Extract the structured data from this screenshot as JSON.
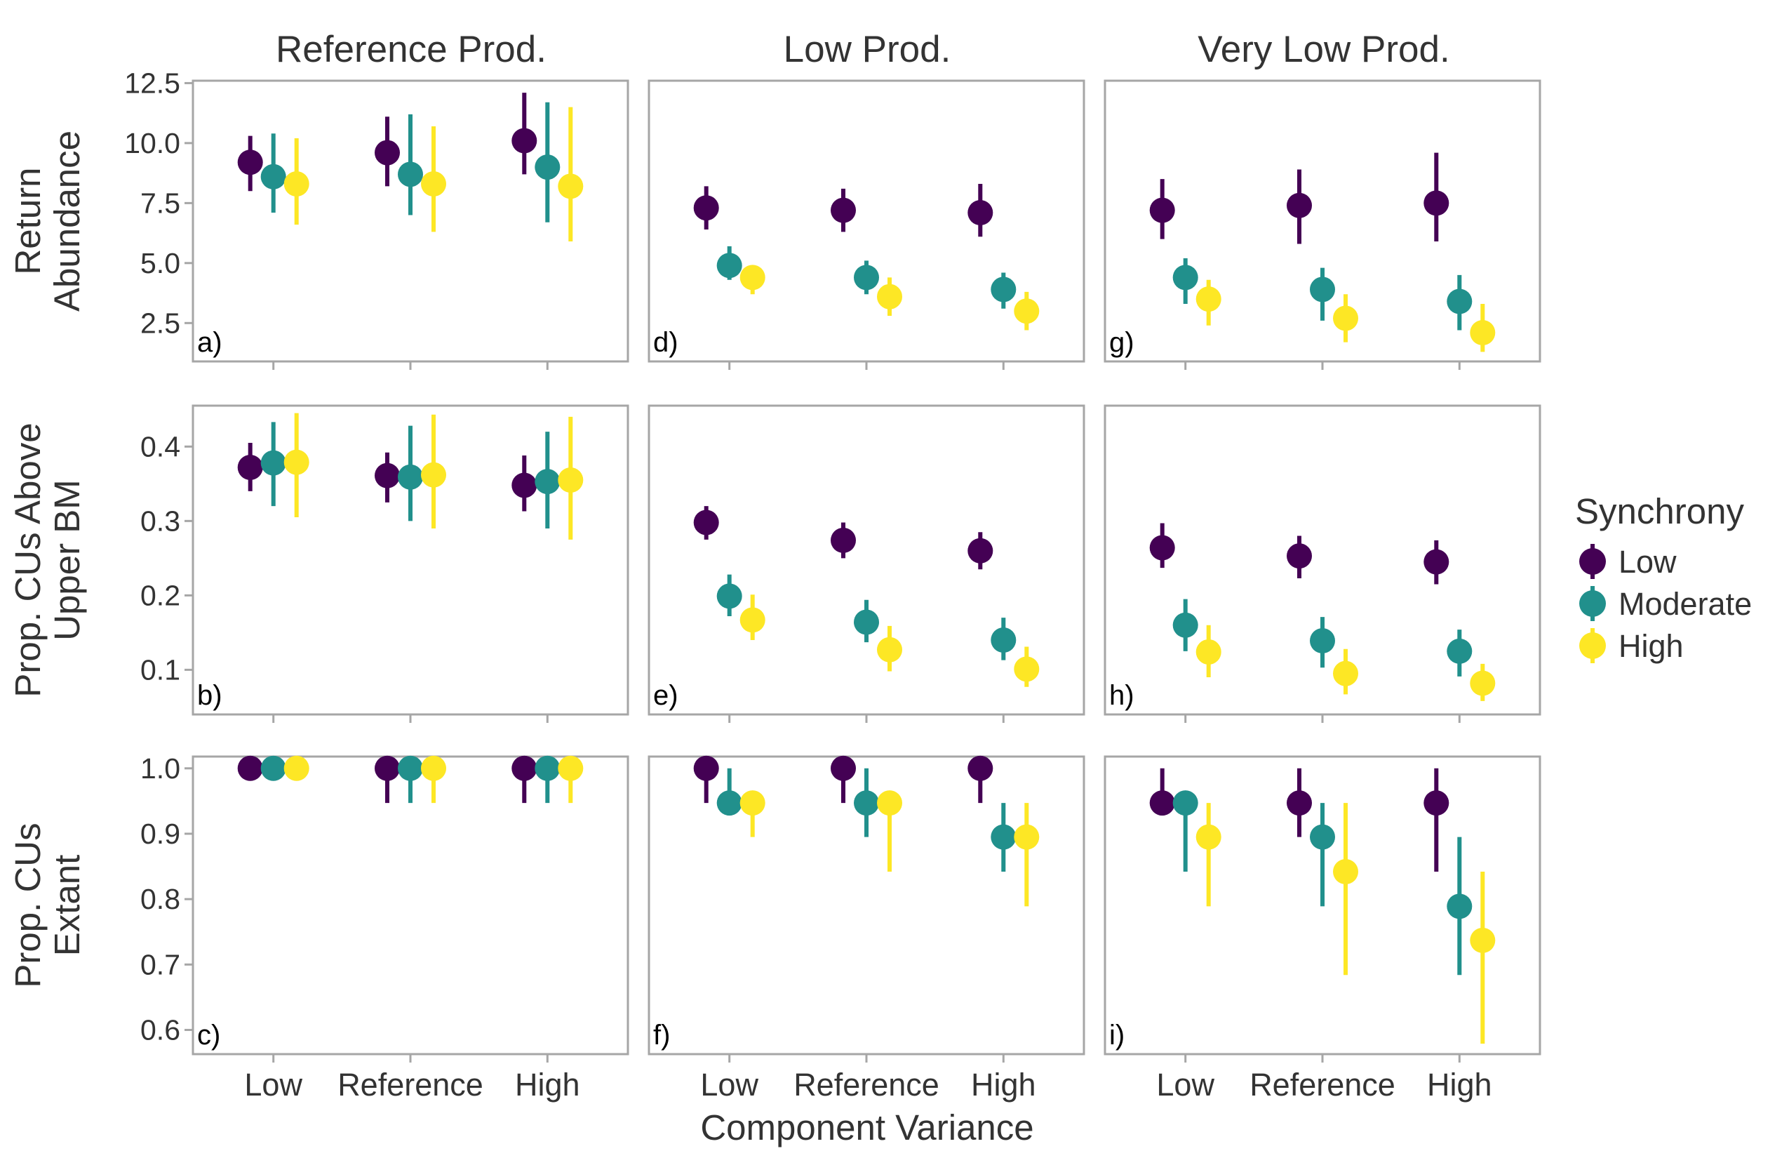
{
  "x_axis": {
    "title": "Component Variance",
    "categories": [
      "Low",
      "Reference",
      "High"
    ]
  },
  "columns": [
    "Reference Prod.",
    "Low Prod.",
    "Very Low Prod."
  ],
  "rows": [
    {
      "label_lines": [
        "Return",
        "Abundance"
      ],
      "ylim": [
        0.9,
        12.6
      ],
      "ticks": [
        2.5,
        5.0,
        7.5,
        10.0,
        12.5
      ],
      "tick_labels": [
        "2.5",
        "5.0",
        "7.5",
        "10.0",
        "12.5"
      ]
    },
    {
      "label_lines": [
        "Prop. CUs Above",
        "Upper BM"
      ],
      "ylim": [
        0.04,
        0.455
      ],
      "ticks": [
        0.1,
        0.2,
        0.3,
        0.4
      ],
      "tick_labels": [
        "0.1",
        "0.2",
        "0.3",
        "0.4"
      ]
    },
    {
      "label_lines": [
        "Prop. CUs",
        "Extant"
      ],
      "ylim": [
        0.563,
        1.018
      ],
      "ticks": [
        0.6,
        0.7,
        0.8,
        0.9,
        1.0
      ],
      "tick_labels": [
        "0.6",
        "0.7",
        "0.8",
        "0.9",
        "1.0"
      ]
    }
  ],
  "legend": {
    "title": "Synchrony",
    "position": "right",
    "entries": [
      {
        "name": "Low",
        "color": "#440154"
      },
      {
        "name": "Moderate",
        "color": "#21908C"
      },
      {
        "name": "High",
        "color": "#FDE725"
      }
    ]
  },
  "chart_data": {
    "type": "scatter",
    "facets": [
      {
        "label": "a)",
        "row": 0,
        "col": 0,
        "series": [
          {
            "name": "Low",
            "x": [
              "Low",
              "Reference",
              "High"
            ],
            "y": [
              9.2,
              9.6,
              10.1
            ],
            "lower": [
              8.0,
              8.2,
              8.7
            ],
            "upper": [
              10.3,
              11.1,
              12.1
            ]
          },
          {
            "name": "Moderate",
            "x": [
              "Low",
              "Reference",
              "High"
            ],
            "y": [
              8.6,
              8.7,
              9.0
            ],
            "lower": [
              7.1,
              7.0,
              6.7
            ],
            "upper": [
              10.4,
              11.2,
              11.7
            ]
          },
          {
            "name": "High",
            "x": [
              "Low",
              "Reference",
              "High"
            ],
            "y": [
              8.3,
              8.3,
              8.2
            ],
            "lower": [
              6.6,
              6.3,
              5.9
            ],
            "upper": [
              10.2,
              10.7,
              11.5
            ]
          }
        ]
      },
      {
        "label": "b)",
        "row": 1,
        "col": 0,
        "series": [
          {
            "name": "Low",
            "x": [
              "Low",
              "Reference",
              "High"
            ],
            "y": [
              0.372,
              0.361,
              0.348
            ],
            "lower": [
              0.34,
              0.325,
              0.313
            ],
            "upper": [
              0.405,
              0.392,
              0.388
            ]
          },
          {
            "name": "Moderate",
            "x": [
              "Low",
              "Reference",
              "High"
            ],
            "y": [
              0.378,
              0.359,
              0.353
            ],
            "lower": [
              0.32,
              0.3,
              0.29
            ],
            "upper": [
              0.433,
              0.428,
              0.42
            ]
          },
          {
            "name": "High",
            "x": [
              "Low",
              "Reference",
              "High"
            ],
            "y": [
              0.379,
              0.362,
              0.355
            ],
            "lower": [
              0.305,
              0.29,
              0.275
            ],
            "upper": [
              0.445,
              0.443,
              0.44
            ]
          }
        ]
      },
      {
        "label": "c)",
        "row": 2,
        "col": 0,
        "series": [
          {
            "name": "Low",
            "x": [
              "Low",
              "Reference",
              "High"
            ],
            "y": [
              1.0,
              1.0,
              1.0
            ],
            "lower": [
              1.0,
              0.947,
              0.947
            ],
            "upper": [
              1.0,
              1.0,
              1.0
            ]
          },
          {
            "name": "Moderate",
            "x": [
              "Low",
              "Reference",
              "High"
            ],
            "y": [
              1.0,
              1.0,
              1.0
            ],
            "lower": [
              1.0,
              0.947,
              0.947
            ],
            "upper": [
              1.0,
              1.0,
              1.0
            ]
          },
          {
            "name": "High",
            "x": [
              "Low",
              "Reference",
              "High"
            ],
            "y": [
              1.0,
              1.0,
              1.0
            ],
            "lower": [
              1.0,
              0.947,
              0.947
            ],
            "upper": [
              1.0,
              1.0,
              1.0
            ]
          }
        ]
      },
      {
        "label": "d)",
        "row": 0,
        "col": 1,
        "series": [
          {
            "name": "Low",
            "x": [
              "Low",
              "Reference",
              "High"
            ],
            "y": [
              7.3,
              7.2,
              7.1
            ],
            "lower": [
              6.4,
              6.3,
              6.1
            ],
            "upper": [
              8.2,
              8.1,
              8.3
            ]
          },
          {
            "name": "Moderate",
            "x": [
              "Low",
              "Reference",
              "High"
            ],
            "y": [
              4.9,
              4.4,
              3.9
            ],
            "lower": [
              4.3,
              3.7,
              3.1
            ],
            "upper": [
              5.7,
              5.1,
              4.6
            ]
          },
          {
            "name": "High",
            "x": [
              "Low",
              "Reference",
              "High"
            ],
            "y": [
              4.4,
              3.6,
              3.0
            ],
            "lower": [
              3.7,
              2.8,
              2.2
            ],
            "upper": [
              4.9,
              4.4,
              3.8
            ]
          }
        ]
      },
      {
        "label": "e)",
        "row": 1,
        "col": 1,
        "series": [
          {
            "name": "Low",
            "x": [
              "Low",
              "Reference",
              "High"
            ],
            "y": [
              0.298,
              0.274,
              0.26
            ],
            "lower": [
              0.275,
              0.25,
              0.235
            ],
            "upper": [
              0.32,
              0.298,
              0.285
            ]
          },
          {
            "name": "Moderate",
            "x": [
              "Low",
              "Reference",
              "High"
            ],
            "y": [
              0.199,
              0.164,
              0.14
            ],
            "lower": [
              0.172,
              0.137,
              0.113
            ],
            "upper": [
              0.228,
              0.194,
              0.17
            ]
          },
          {
            "name": "High",
            "x": [
              "Low",
              "Reference",
              "High"
            ],
            "y": [
              0.167,
              0.127,
              0.101
            ],
            "lower": [
              0.14,
              0.098,
              0.077
            ],
            "upper": [
              0.201,
              0.159,
              0.131
            ]
          }
        ]
      },
      {
        "label": "f)",
        "row": 2,
        "col": 1,
        "series": [
          {
            "name": "Low",
            "x": [
              "Low",
              "Reference",
              "High"
            ],
            "y": [
              1.0,
              1.0,
              1.0
            ],
            "lower": [
              0.947,
              0.947,
              0.947
            ],
            "upper": [
              1.0,
              1.0,
              1.0
            ]
          },
          {
            "name": "Moderate",
            "x": [
              "Low",
              "Reference",
              "High"
            ],
            "y": [
              0.947,
              0.947,
              0.895
            ],
            "lower": [
              0.947,
              0.895,
              0.842
            ],
            "upper": [
              1.0,
              1.0,
              0.947
            ]
          },
          {
            "name": "High",
            "x": [
              "Low",
              "Reference",
              "High"
            ],
            "y": [
              0.947,
              0.947,
              0.895
            ],
            "lower": [
              0.895,
              0.842,
              0.789
            ],
            "upper": [
              0.947,
              0.947,
              0.947
            ]
          }
        ]
      },
      {
        "label": "g)",
        "row": 0,
        "col": 2,
        "series": [
          {
            "name": "Low",
            "x": [
              "Low",
              "Reference",
              "High"
            ],
            "y": [
              7.2,
              7.4,
              7.5
            ],
            "lower": [
              6.0,
              5.8,
              5.9
            ],
            "upper": [
              8.5,
              8.9,
              9.6
            ]
          },
          {
            "name": "Moderate",
            "x": [
              "Low",
              "Reference",
              "High"
            ],
            "y": [
              4.4,
              3.9,
              3.4
            ],
            "lower": [
              3.3,
              2.6,
              2.2
            ],
            "upper": [
              5.2,
              4.8,
              4.5
            ]
          },
          {
            "name": "High",
            "x": [
              "Low",
              "Reference",
              "High"
            ],
            "y": [
              3.5,
              2.7,
              2.1
            ],
            "lower": [
              2.4,
              1.7,
              1.3
            ],
            "upper": [
              4.3,
              3.7,
              3.3
            ]
          }
        ]
      },
      {
        "label": "h)",
        "row": 1,
        "col": 2,
        "series": [
          {
            "name": "Low",
            "x": [
              "Low",
              "Reference",
              "High"
            ],
            "y": [
              0.264,
              0.253,
              0.245
            ],
            "lower": [
              0.237,
              0.223,
              0.215
            ],
            "upper": [
              0.297,
              0.28,
              0.274
            ]
          },
          {
            "name": "Moderate",
            "x": [
              "Low",
              "Reference",
              "High"
            ],
            "y": [
              0.16,
              0.139,
              0.125
            ],
            "lower": [
              0.125,
              0.103,
              0.091
            ],
            "upper": [
              0.195,
              0.171,
              0.154
            ]
          },
          {
            "name": "High",
            "x": [
              "Low",
              "Reference",
              "High"
            ],
            "y": [
              0.124,
              0.095,
              0.082
            ],
            "lower": [
              0.09,
              0.067,
              0.058
            ],
            "upper": [
              0.16,
              0.128,
              0.108
            ]
          }
        ]
      },
      {
        "label": "i)",
        "row": 2,
        "col": 2,
        "series": [
          {
            "name": "Low",
            "x": [
              "Low",
              "Reference",
              "High"
            ],
            "y": [
              0.947,
              0.947,
              0.947
            ],
            "lower": [
              0.947,
              0.895,
              0.842
            ],
            "upper": [
              1.0,
              1.0,
              1.0
            ]
          },
          {
            "name": "Moderate",
            "x": [
              "Low",
              "Reference",
              "High"
            ],
            "y": [
              0.947,
              0.895,
              0.789
            ],
            "lower": [
              0.842,
              0.789,
              0.684
            ],
            "upper": [
              0.947,
              0.947,
              0.895
            ]
          },
          {
            "name": "High",
            "x": [
              "Low",
              "Reference",
              "High"
            ],
            "y": [
              0.895,
              0.842,
              0.737
            ],
            "lower": [
              0.789,
              0.684,
              0.579
            ],
            "upper": [
              0.947,
              0.947,
              0.842
            ]
          }
        ]
      }
    ]
  }
}
